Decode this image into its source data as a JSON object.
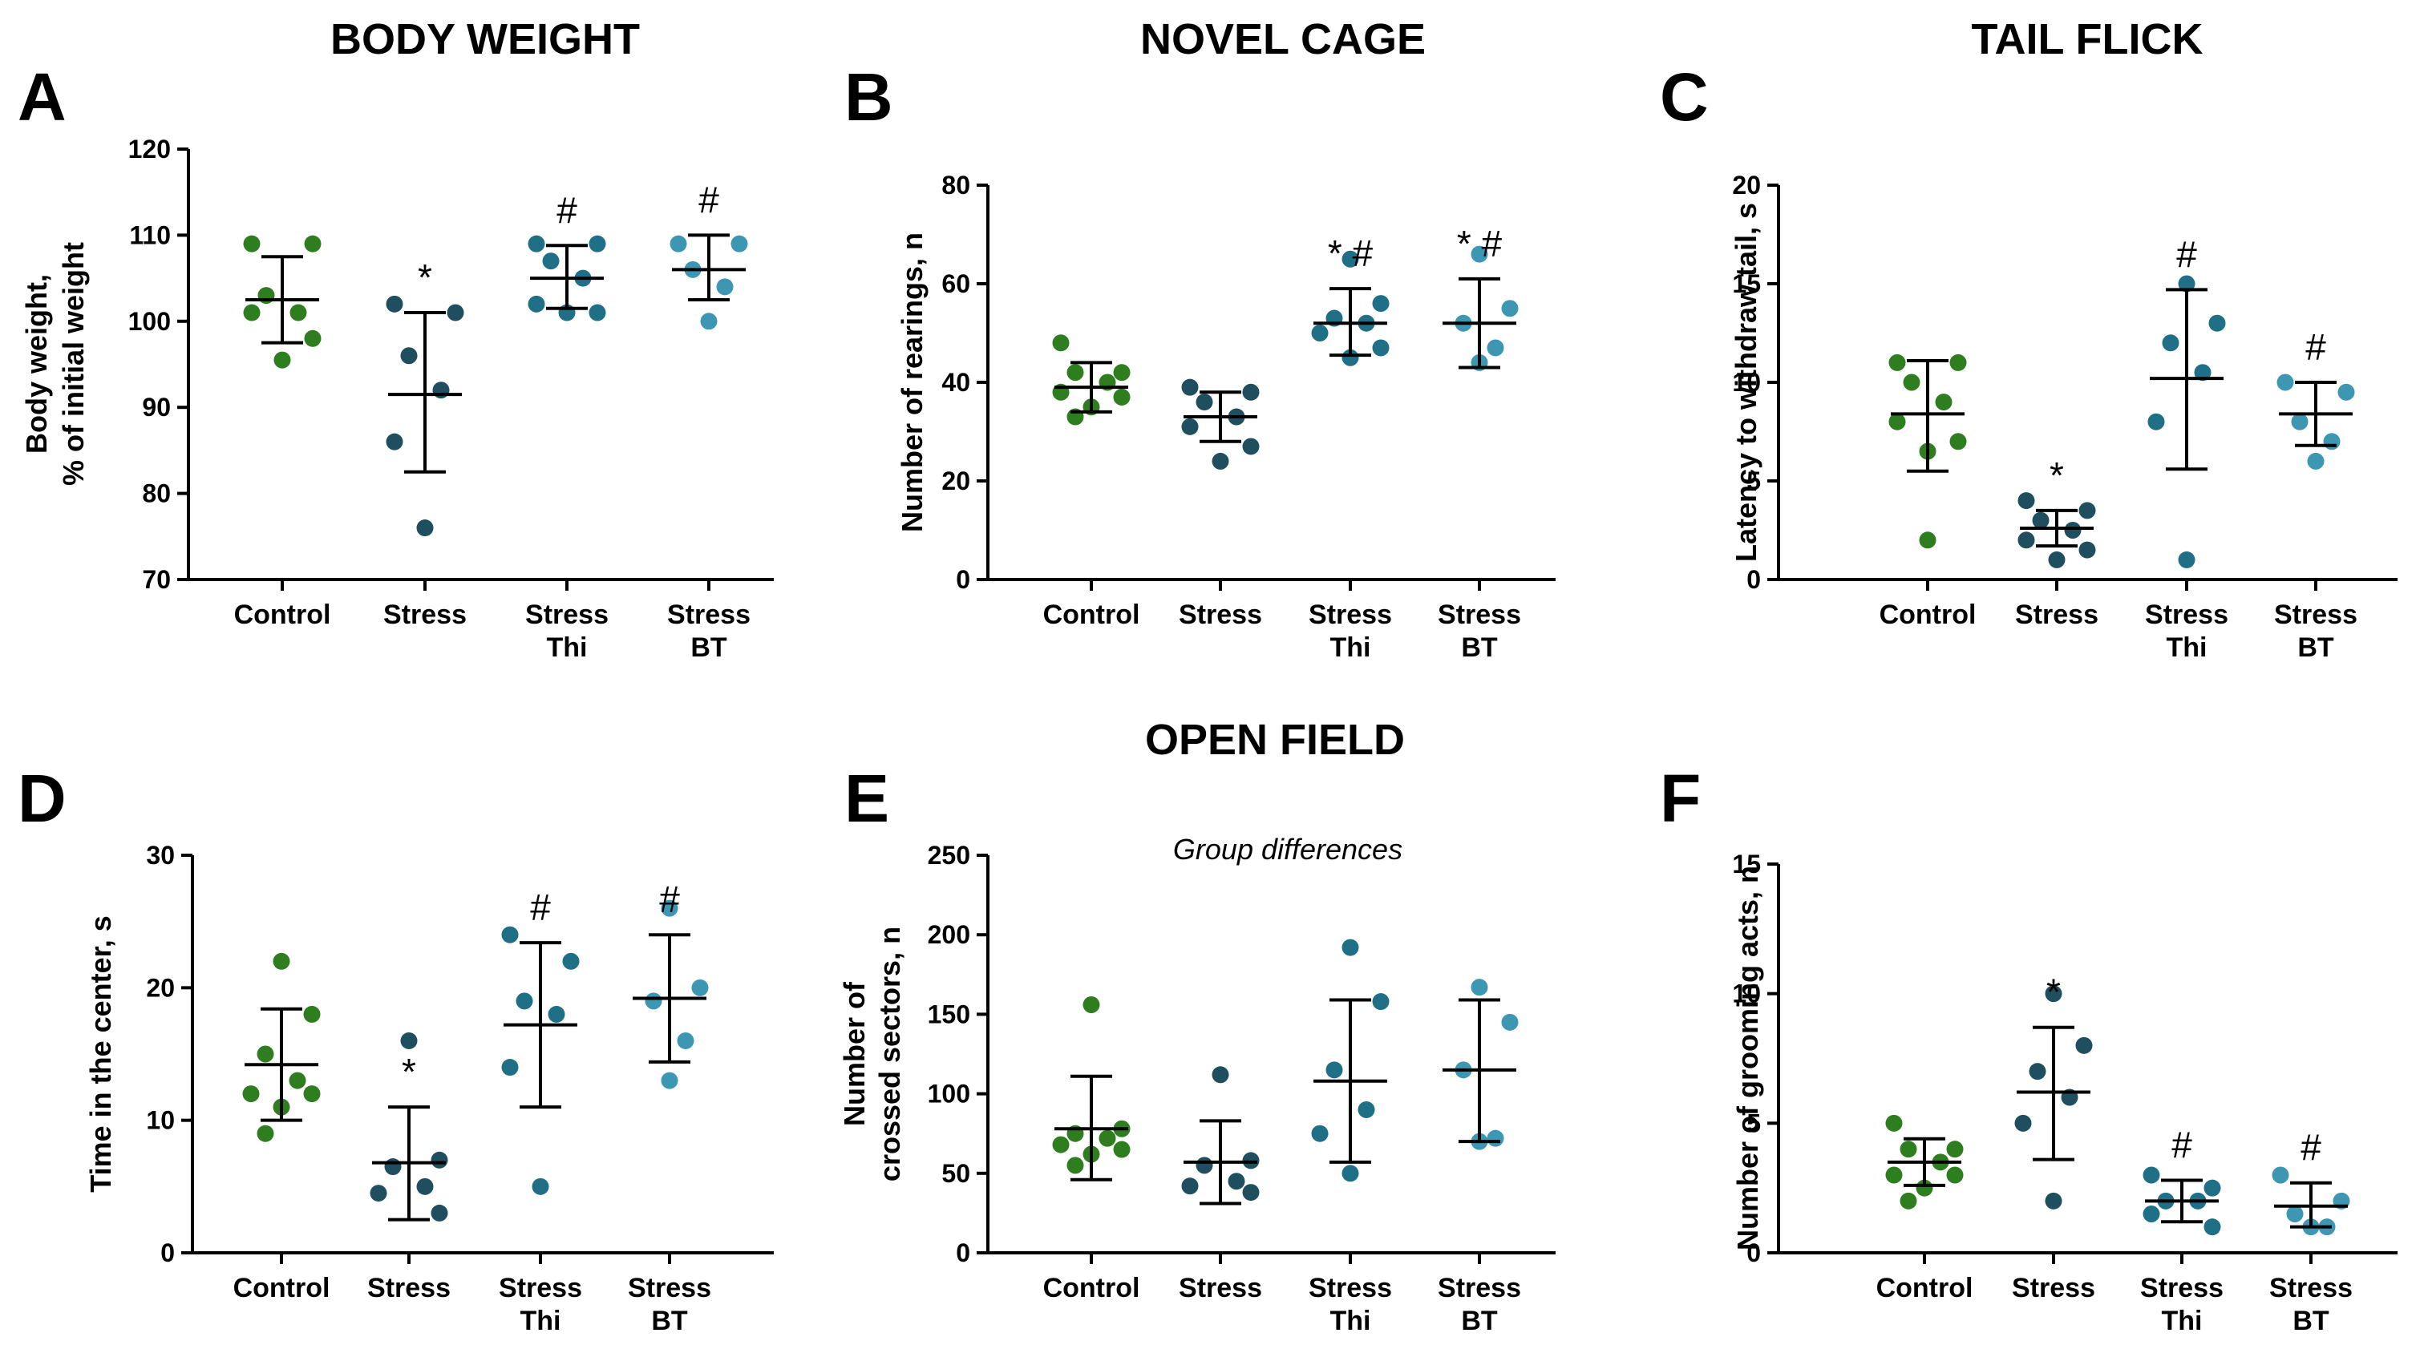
{
  "figure_titles": {
    "body_weight": "BODY WEIGHT",
    "novel_cage": "NOVEL CAGE",
    "tail_flick": "TAIL FLICK",
    "open_field": "OPEN FIELD"
  },
  "colors": {
    "Control": "#2e7d1f",
    "Stress": "#1f4e5f",
    "Stress Thi": "#1f6f86",
    "Stress BT": "#3d97b3"
  },
  "chart_data": [
    {
      "panel": "A",
      "type": "scatter",
      "title": "BODY WEIGHT",
      "ylabel_lines": [
        "Body weight,",
        "% of initial weight"
      ],
      "ylim": [
        70,
        120
      ],
      "yticks": [
        70,
        80,
        90,
        100,
        110,
        120
      ],
      "categories": [
        [
          "Control"
        ],
        [
          "Stress"
        ],
        [
          "Stress",
          "Thi"
        ],
        [
          "Stress",
          "BT"
        ]
      ],
      "groups": [
        {
          "points": [
            109,
            109,
            103,
            101,
            101,
            98,
            95.5
          ],
          "mean": 102.5,
          "sd": [
            97.5,
            107.5
          ],
          "marker": ""
        },
        {
          "points": [
            102,
            101,
            96,
            92,
            86,
            76
          ],
          "mean": 91.5,
          "sd": [
            82.5,
            101
          ],
          "marker": "*"
        },
        {
          "points": [
            109,
            109,
            107,
            105,
            102,
            101,
            101
          ],
          "mean": 105,
          "sd": [
            101.5,
            108.8
          ],
          "marker": "#"
        },
        {
          "points": [
            109,
            109,
            106,
            104,
            100
          ],
          "mean": 106,
          "sd": [
            102.5,
            110
          ],
          "marker": "#"
        }
      ]
    },
    {
      "panel": "B",
      "type": "scatter",
      "title": "NOVEL CAGE",
      "ylabel_lines": [
        "Number of rearings, n"
      ],
      "ylim": [
        0,
        80
      ],
      "yticks": [
        0,
        20,
        40,
        60,
        80
      ],
      "categories": [
        [
          "Control"
        ],
        [
          "Stress"
        ],
        [
          "Stress",
          "Thi"
        ],
        [
          "Stress",
          "BT"
        ]
      ],
      "groups": [
        {
          "points": [
            48,
            42,
            42,
            40,
            38,
            37,
            35,
            33
          ],
          "mean": 39,
          "sd": [
            34,
            44
          ],
          "marker": ""
        },
        {
          "points": [
            39,
            38,
            36,
            33,
            31,
            27,
            24
          ],
          "mean": 33,
          "sd": [
            28,
            38
          ],
          "marker": ""
        },
        {
          "points": [
            65,
            56,
            53,
            52,
            50,
            47,
            45
          ],
          "mean": 52,
          "sd": [
            45.5,
            59
          ],
          "marker": "* #"
        },
        {
          "points": [
            66,
            55,
            52,
            47,
            44
          ],
          "mean": 52,
          "sd": [
            43,
            61
          ],
          "marker": "* #"
        }
      ]
    },
    {
      "panel": "C",
      "type": "scatter",
      "title": "TAIL FLICK",
      "ylabel_lines": [
        "Latency to withdraw tail, s"
      ],
      "ylim": [
        0,
        20
      ],
      "yticks": [
        0,
        5,
        10,
        15,
        20
      ],
      "categories": [
        [
          "Control"
        ],
        [
          "Stress"
        ],
        [
          "Stress",
          "Thi"
        ],
        [
          "Stress",
          "BT"
        ]
      ],
      "groups": [
        {
          "points": [
            11,
            11,
            10,
            9,
            8,
            7,
            6.5,
            2
          ],
          "mean": 8.4,
          "sd": [
            5.5,
            11.1
          ],
          "marker": ""
        },
        {
          "points": [
            4,
            3.5,
            3,
            2.5,
            2,
            1.5,
            1
          ],
          "mean": 2.6,
          "sd": [
            1.7,
            3.5
          ],
          "marker": "*"
        },
        {
          "points": [
            15,
            13,
            12,
            10.5,
            8,
            1
          ],
          "mean": 10.2,
          "sd": [
            5.6,
            14.7
          ],
          "marker": "#"
        },
        {
          "points": [
            10,
            9.5,
            8,
            7,
            6
          ],
          "mean": 8.4,
          "sd": [
            6.8,
            10
          ],
          "marker": "#"
        }
      ]
    },
    {
      "panel": "D",
      "type": "scatter",
      "title": "OPEN FIELD",
      "ylabel_lines": [
        "Time in the center, s"
      ],
      "ylim": [
        0,
        30
      ],
      "yticks": [
        0,
        10,
        20,
        30
      ],
      "categories": [
        [
          "Control"
        ],
        [
          "Stress"
        ],
        [
          "Stress",
          "Thi"
        ],
        [
          "Stress",
          "BT"
        ]
      ],
      "groups": [
        {
          "points": [
            22,
            18,
            15,
            13,
            12,
            12,
            11,
            9
          ],
          "mean": 14.2,
          "sd": [
            10,
            18.4
          ],
          "marker": ""
        },
        {
          "points": [
            16,
            7,
            6.5,
            5,
            4.5,
            3
          ],
          "mean": 6.8,
          "sd": [
            2.5,
            11
          ],
          "marker": "*"
        },
        {
          "points": [
            24,
            22,
            19,
            18,
            14,
            5
          ],
          "mean": 17.2,
          "sd": [
            11,
            23.4
          ],
          "marker": "#"
        },
        {
          "points": [
            26,
            20,
            19,
            16,
            13
          ],
          "mean": 19.2,
          "sd": [
            14.4,
            24
          ],
          "marker": "#"
        }
      ]
    },
    {
      "panel": "E",
      "type": "scatter",
      "title": "OPEN FIELD",
      "ylabel_lines": [
        "Number of",
        "crossed sectors, n"
      ],
      "annotation": "Group differences",
      "ylim": [
        0,
        250
      ],
      "yticks": [
        0,
        50,
        100,
        150,
        200,
        250
      ],
      "categories": [
        [
          "Control"
        ],
        [
          "Stress"
        ],
        [
          "Stress",
          "Thi"
        ],
        [
          "Stress",
          "BT"
        ]
      ],
      "groups": [
        {
          "points": [
            156,
            78,
            75,
            72,
            68,
            65,
            62,
            55
          ],
          "mean": 78,
          "sd": [
            46,
            111
          ],
          "marker": ""
        },
        {
          "points": [
            112,
            58,
            55,
            45,
            42,
            38
          ],
          "mean": 57,
          "sd": [
            31,
            83
          ],
          "marker": ""
        },
        {
          "points": [
            192,
            158,
            115,
            90,
            75,
            50
          ],
          "mean": 108,
          "sd": [
            57,
            159
          ],
          "marker": ""
        },
        {
          "points": [
            167,
            145,
            115,
            72,
            70
          ],
          "mean": 115,
          "sd": [
            70,
            159
          ],
          "marker": ""
        }
      ]
    },
    {
      "panel": "F",
      "type": "scatter",
      "title": "",
      "ylabel_lines": [
        "Number of grooming acts, n"
      ],
      "ylim": [
        0,
        15
      ],
      "yticks": [
        0,
        5,
        10,
        15
      ],
      "categories": [
        [
          "Control"
        ],
        [
          "Stress"
        ],
        [
          "Stress",
          "Thi"
        ],
        [
          "Stress",
          "BT"
        ]
      ],
      "groups": [
        {
          "points": [
            5,
            4,
            4,
            3.5,
            3,
            3,
            2.5,
            2
          ],
          "mean": 3.5,
          "sd": [
            2.6,
            4.4
          ],
          "marker": ""
        },
        {
          "points": [
            10,
            8,
            7,
            6,
            5,
            2
          ],
          "mean": 6.2,
          "sd": [
            3.6,
            8.7
          ],
          "marker": "*"
        },
        {
          "points": [
            3,
            2.5,
            2,
            2,
            1.5,
            1
          ],
          "mean": 2,
          "sd": [
            1.2,
            2.8
          ],
          "marker": "#"
        },
        {
          "points": [
            3,
            2,
            1.5,
            1,
            1
          ],
          "mean": 1.8,
          "sd": [
            1,
            2.7
          ],
          "marker": "#"
        }
      ]
    }
  ]
}
